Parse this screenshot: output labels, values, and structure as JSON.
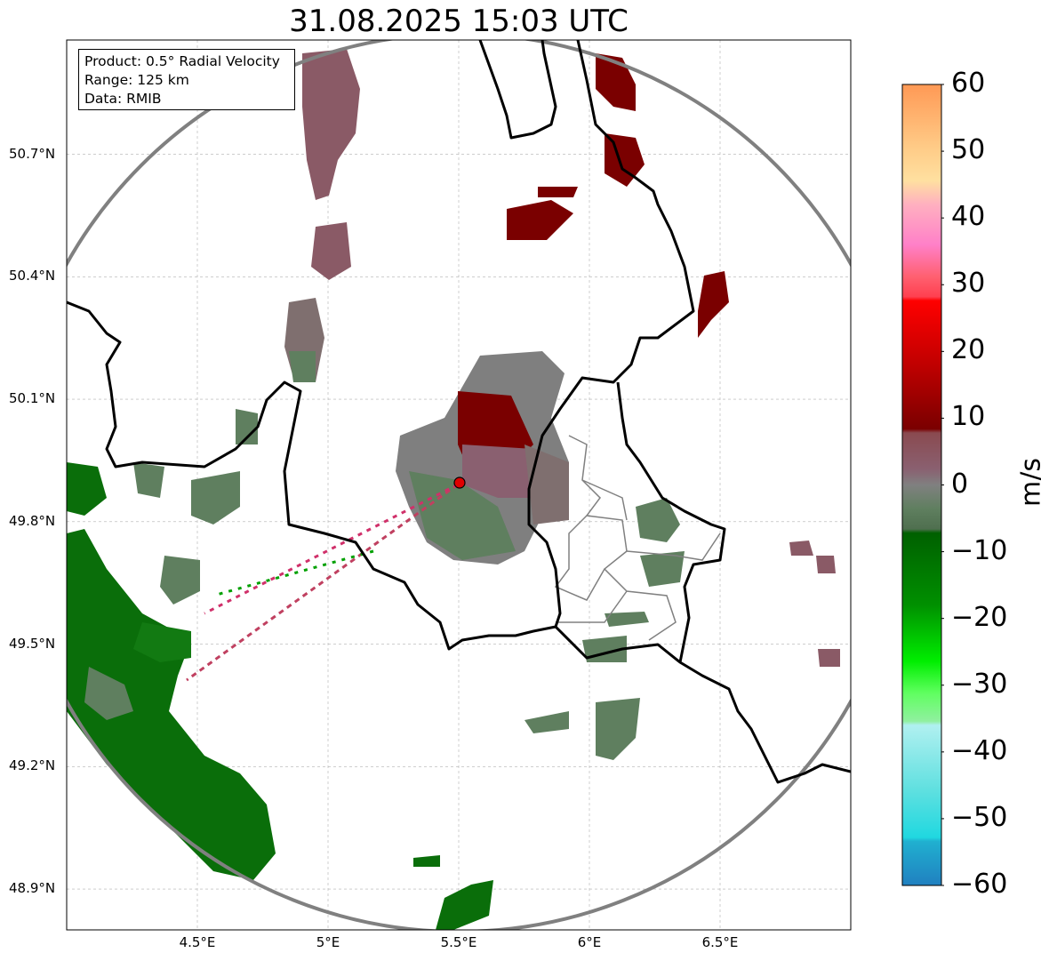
{
  "title": "31.08.2025 15:03 UTC",
  "info_box": {
    "product": "Product: 0.5° Radial Velocity",
    "range": "Range: 125 km",
    "data": "Data: RMIB"
  },
  "map": {
    "lat_range": [
      48.8,
      50.98
    ],
    "lon_range": [
      4.0,
      7.0
    ],
    "lat_ticks": [
      "50.7°N",
      "50.4°N",
      "50.1°N",
      "49.8°N",
      "49.5°N",
      "49.2°N",
      "48.9°N"
    ],
    "lat_values": [
      50.7,
      50.4,
      50.1,
      49.8,
      49.5,
      49.2,
      48.9
    ],
    "lon_ticks": [
      "4.5°E",
      "5°E",
      "5.5°E",
      "6°E",
      "6.5°E"
    ],
    "lon_values": [
      4.5,
      5.0,
      5.5,
      6.0,
      6.5
    ],
    "grid": true,
    "radar_site": {
      "lat": 49.91,
      "lon": 5.51
    },
    "range_ring_color": "#808080",
    "border_color": "#000000",
    "inner_border_color": "#808080"
  },
  "colorbar": {
    "unit": "m/s",
    "min": -60,
    "max": 60,
    "tick_labels": [
      "60",
      "50",
      "40",
      "30",
      "20",
      "10",
      "0",
      "−10",
      "−20",
      "−30",
      "−40",
      "−50",
      "−60"
    ],
    "tick_values": [
      60,
      50,
      40,
      30,
      20,
      10,
      0,
      -10,
      -20,
      -30,
      -40,
      -50,
      -60
    ]
  },
  "colors": {
    "away_strong": "#7a0000",
    "away_weak": "#8a5a66",
    "near_zero": "#7f7f7f",
    "toward_weak": "#5f7f5f",
    "toward_strong": "#007000",
    "toward_bright": "#00e000"
  }
}
